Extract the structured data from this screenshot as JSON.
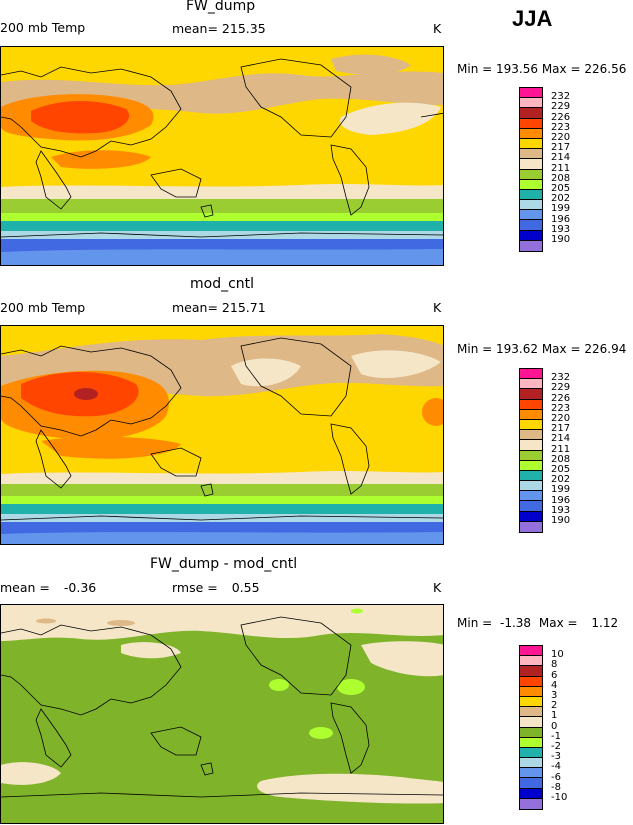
{
  "season": "JJA",
  "chart_data": [
    {
      "type": "heatmap",
      "title": "FW_dump",
      "variable": "200 mb Temp",
      "stat_label": "mean=",
      "stat_value": "215.35",
      "units": "K",
      "min_label": "Min =",
      "min_value": "193.56",
      "max_label": "Max =",
      "max_value": "226.56",
      "levels": [
        "232",
        "229",
        "226",
        "223",
        "220",
        "217",
        "214",
        "211",
        "208",
        "205",
        "202",
        "199",
        "196",
        "193",
        "190"
      ],
      "colors": [
        "#ff1493",
        "#ffb6c1",
        "#b22222",
        "#ff4500",
        "#ff8c00",
        "#ffd700",
        "#deb887",
        "#f5e6c8",
        "#9acd32",
        "#adff2f",
        "#20b2aa",
        "#add8e6",
        "#6495ed",
        "#4169e1",
        "#0000cd",
        "#9370db"
      ]
    },
    {
      "type": "heatmap",
      "title": "mod_cntl",
      "variable": "200 mb Temp",
      "stat_label": "mean=",
      "stat_value": "215.71",
      "units": "K",
      "min_label": "Min =",
      "min_value": "193.62",
      "max_label": "Max =",
      "max_value": "226.94",
      "levels": [
        "232",
        "229",
        "226",
        "223",
        "220",
        "217",
        "214",
        "211",
        "208",
        "205",
        "202",
        "199",
        "196",
        "193",
        "190"
      ],
      "colors": [
        "#ff1493",
        "#ffb6c1",
        "#b22222",
        "#ff4500",
        "#ff8c00",
        "#ffd700",
        "#deb887",
        "#f5e6c8",
        "#9acd32",
        "#adff2f",
        "#20b2aa",
        "#add8e6",
        "#6495ed",
        "#4169e1",
        "#0000cd",
        "#9370db"
      ]
    },
    {
      "type": "heatmap",
      "title": "FW_dump - mod_cntl",
      "stat1_label": "mean =",
      "stat1_value": "-0.36",
      "stat2_label": "rmse =",
      "stat2_value": "0.55",
      "units": "K",
      "min_label": "Min =",
      "min_value": "-1.38",
      "max_label": "Max =",
      "max_value": "1.12",
      "levels": [
        "10",
        "8",
        "6",
        "4",
        "3",
        "2",
        "1",
        "0",
        "-1",
        "-2",
        "-3",
        "-4",
        "-6",
        "-8",
        "-10"
      ],
      "colors": [
        "#ff1493",
        "#ffb6c1",
        "#b22222",
        "#ff4500",
        "#ff8c00",
        "#ffd700",
        "#deb887",
        "#f5e6c8",
        "#7fb32a",
        "#adff2f",
        "#20b2aa",
        "#add8e6",
        "#6495ed",
        "#4169e1",
        "#0000cd",
        "#9370db"
      ]
    }
  ]
}
